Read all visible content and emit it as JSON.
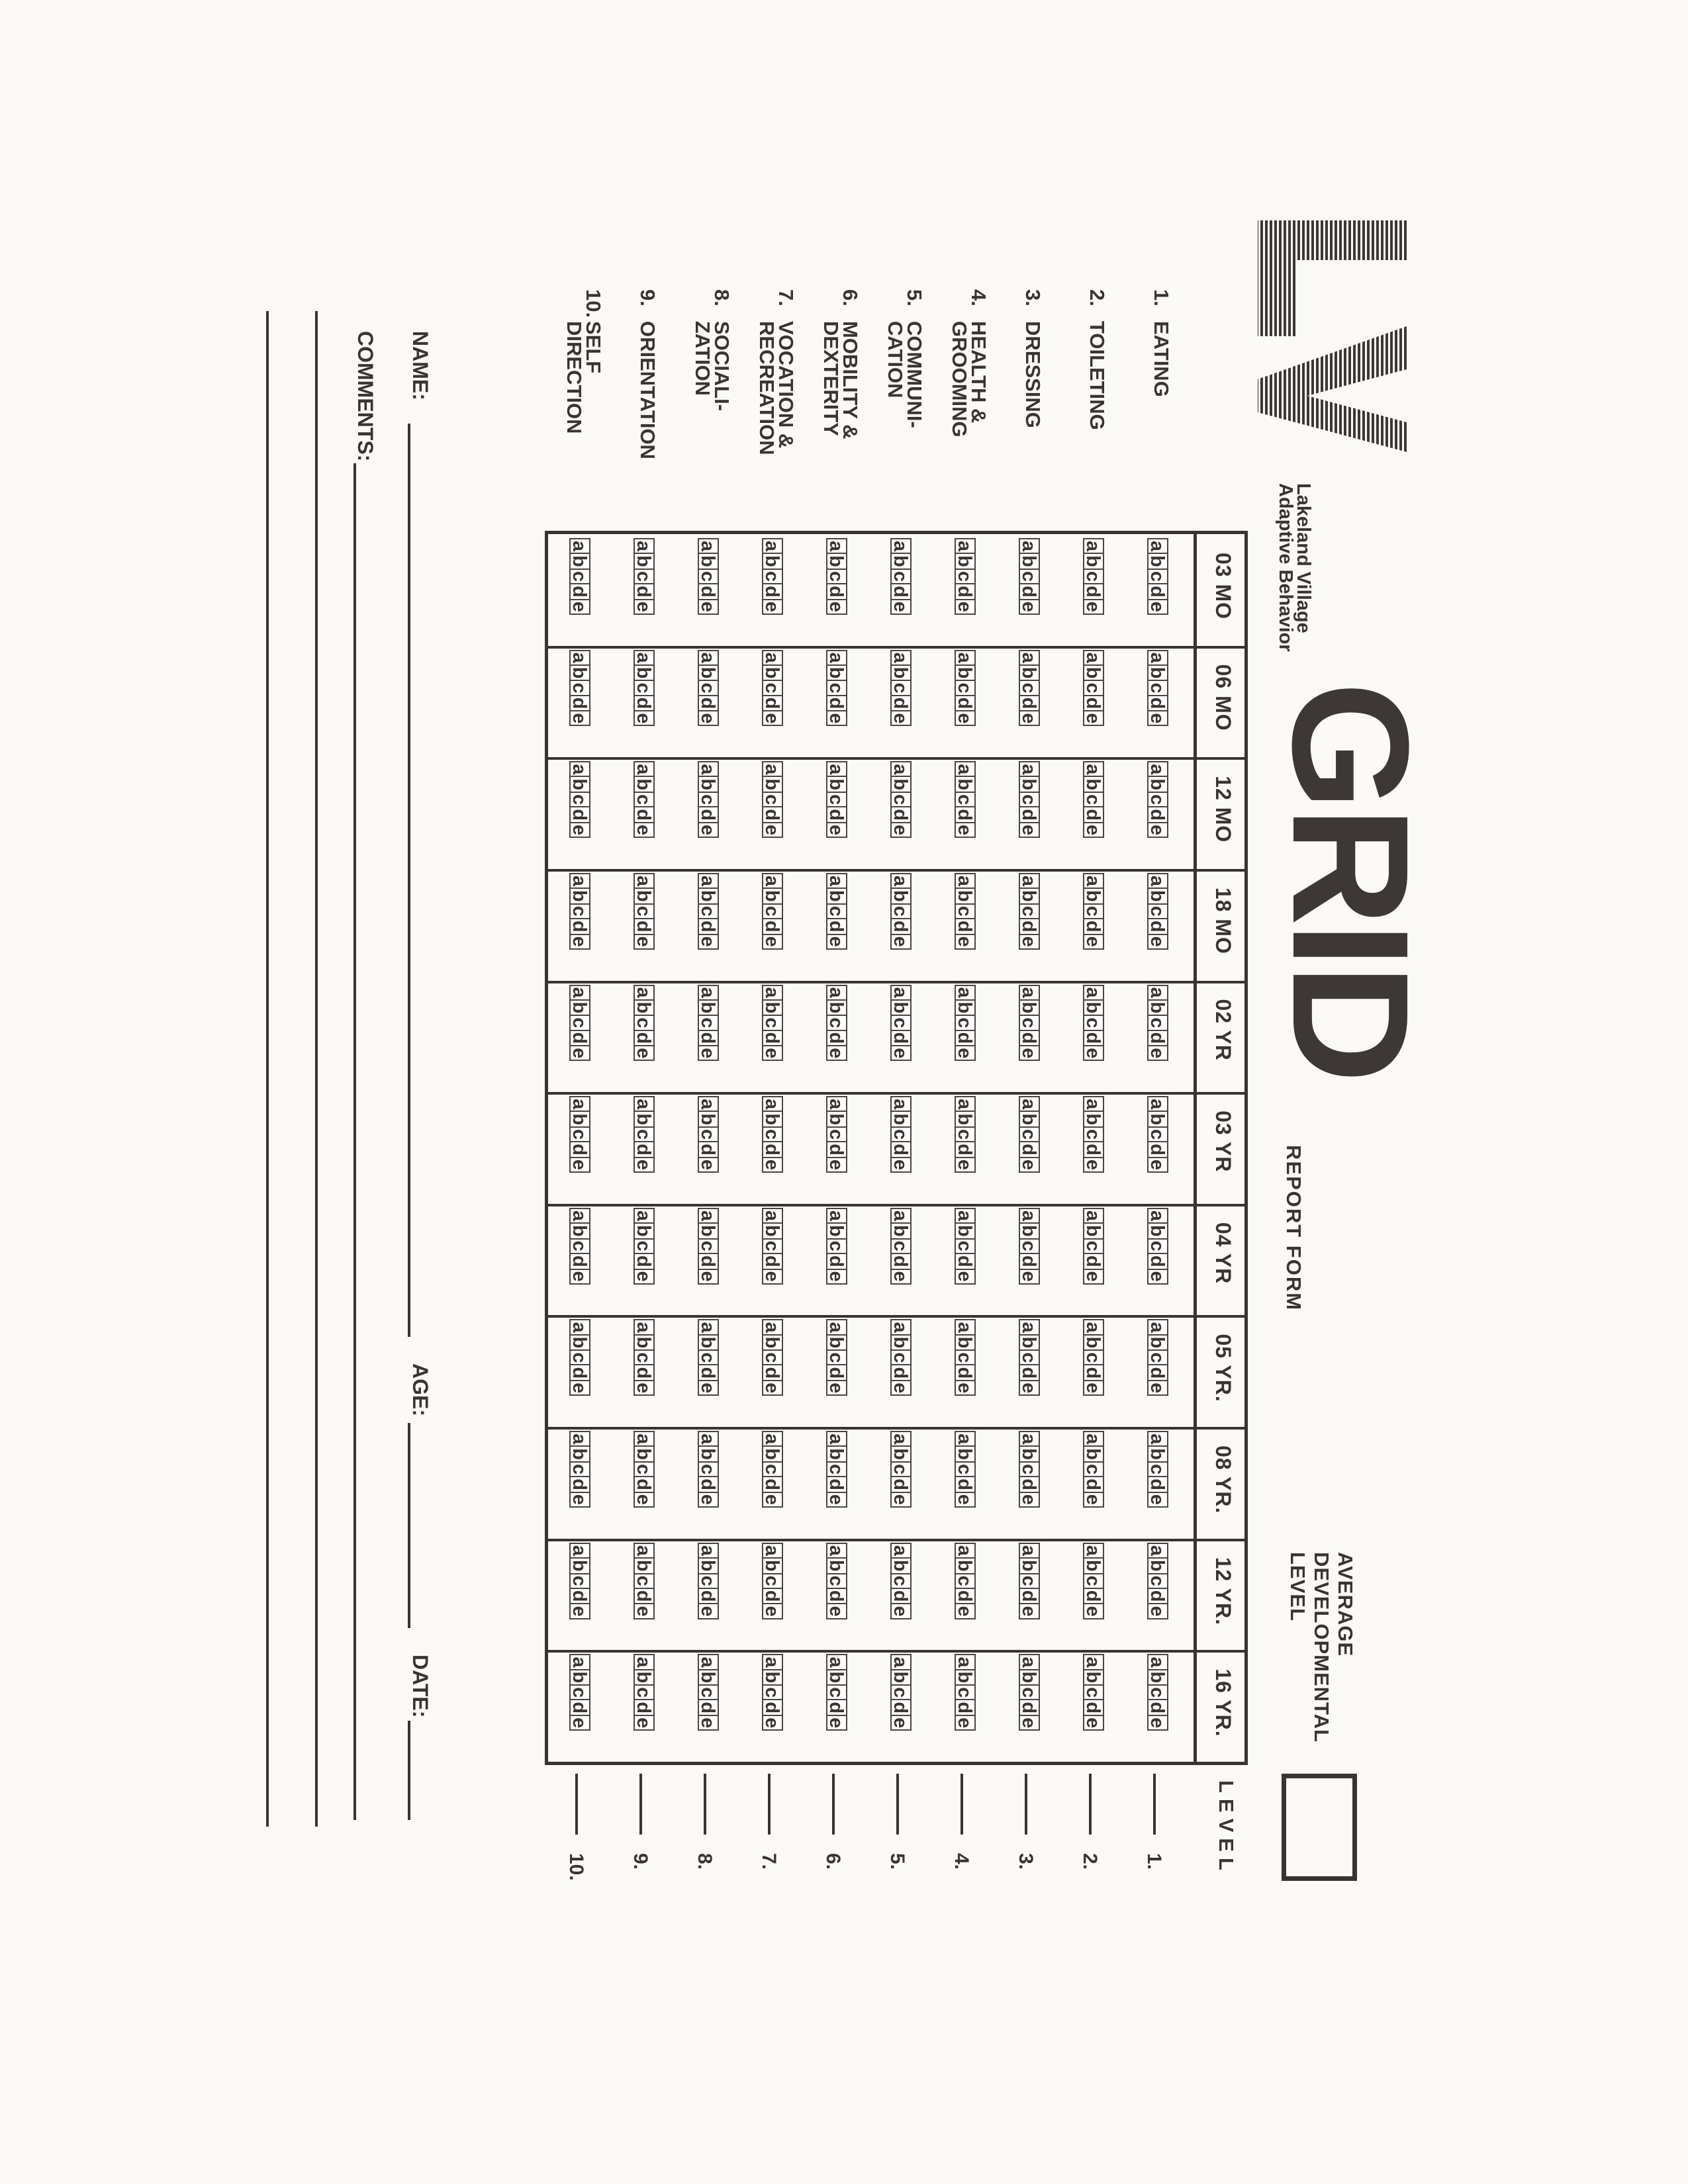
{
  "logo_text": "LV",
  "org": {
    "line1": "Lakeland Village",
    "line2": "Adaptive Behavior"
  },
  "title": "GRID",
  "subtitle": "REPORT FORM",
  "avg_level": {
    "line1": "AVERAGE",
    "line2": "DEVELOPMENTAL",
    "line3": "LEVEL"
  },
  "level_header": "LEVEL",
  "columns": [
    "03 MO",
    "06 MO",
    "12 MO",
    "18 MO",
    "02 YR",
    "03 YR",
    "04 YR",
    "05 YR.",
    "08 YR.",
    "12 YR.",
    "16 YR."
  ],
  "choices": [
    "a",
    "b",
    "c",
    "d",
    "e"
  ],
  "rows": [
    {
      "num": "1.",
      "label": [
        "EATING"
      ]
    },
    {
      "num": "2.",
      "label": [
        "TOILETING"
      ]
    },
    {
      "num": "3.",
      "label": [
        "DRESSING"
      ]
    },
    {
      "num": "4.",
      "label": [
        "HEALTH &",
        "GROOMING"
      ]
    },
    {
      "num": "5.",
      "label": [
        "COMMUNI-",
        "CATION"
      ]
    },
    {
      "num": "6.",
      "label": [
        "MOBILITY &",
        "DEXTERITY"
      ]
    },
    {
      "num": "7.",
      "label": [
        "VOCATION &",
        "RECREATION"
      ]
    },
    {
      "num": "8.",
      "label": [
        "SOCIALI-",
        "ZATION"
      ]
    },
    {
      "num": "9.",
      "label": [
        "ORIENTATION"
      ]
    },
    {
      "num": "10.",
      "label": [
        "SELF",
        "DIRECTION"
      ]
    }
  ],
  "footer": {
    "name": "NAME:",
    "age": "AGE:",
    "date": "DATE:",
    "comments": "COMMENTS:"
  },
  "ink_color": "#3a3430"
}
